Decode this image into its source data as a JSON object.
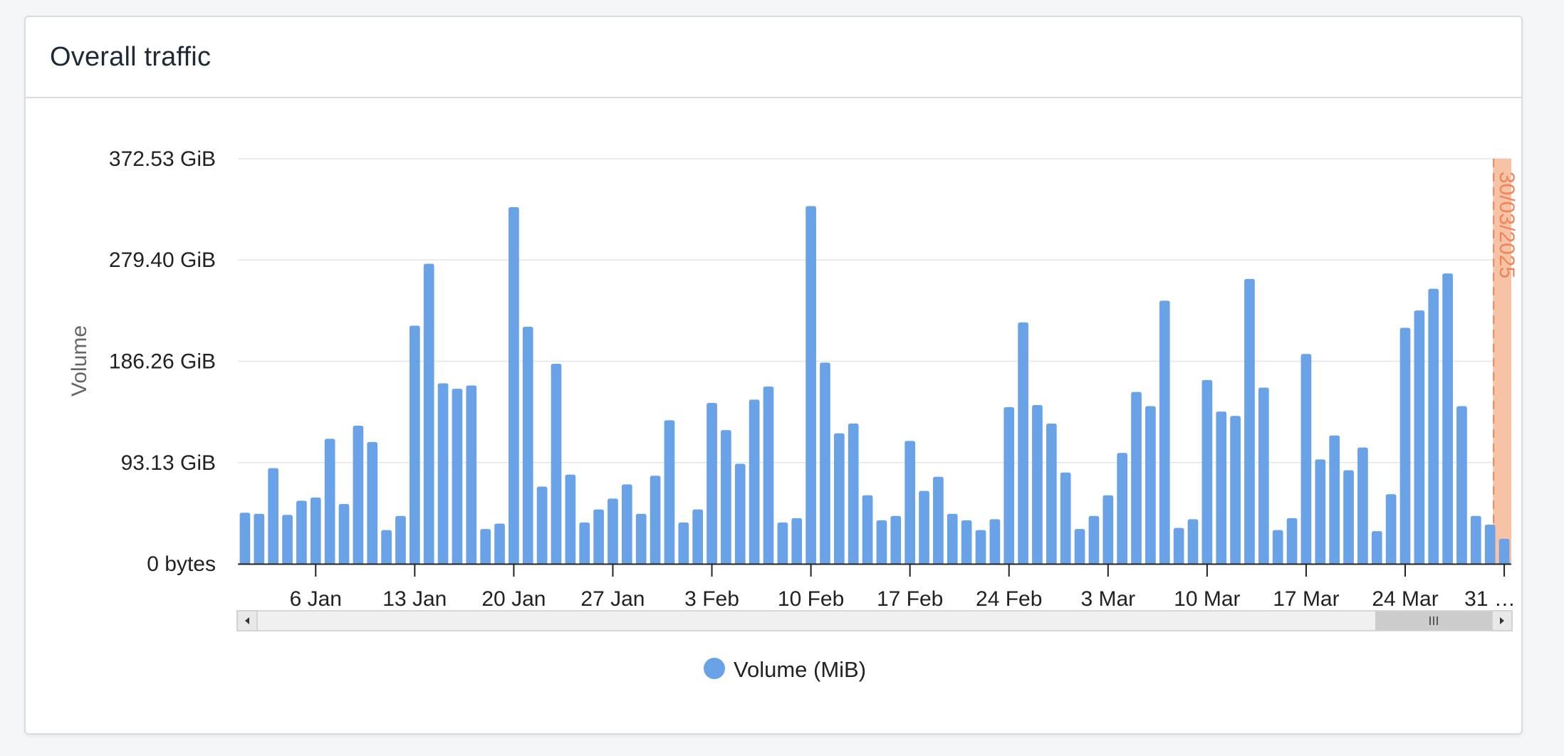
{
  "card": {
    "title": "Overall traffic"
  },
  "colors": {
    "bar": "#6aa2e8",
    "grid": "#e3e6e9",
    "axis": "#222222",
    "plotband": "#f6c3a6",
    "plotline": "#f0855a",
    "scrollbar_track": "#f0f0f0",
    "scrollbar_thumb": "#cccccc",
    "scrollbar_border": "#cccccc"
  },
  "chart_data": {
    "type": "bar",
    "title": "",
    "xlabel": "",
    "ylabel": "Volume",
    "ylim": [
      0,
      372.53
    ],
    "y_unit": "GiB",
    "y_ticks": [
      {
        "value": 0,
        "label": "0 bytes"
      },
      {
        "value": 93.13,
        "label": "93.13 GiB"
      },
      {
        "value": 186.26,
        "label": "186.26 GiB"
      },
      {
        "value": 279.4,
        "label": "279.40 GiB"
      },
      {
        "value": 372.53,
        "label": "372.53 GiB"
      }
    ],
    "x_start": "2025-01-01",
    "x_ticks": [
      {
        "date": "2025-01-06",
        "label": "6 Jan"
      },
      {
        "date": "2025-01-13",
        "label": "13 Jan"
      },
      {
        "date": "2025-01-20",
        "label": "20 Jan"
      },
      {
        "date": "2025-01-27",
        "label": "27 Jan"
      },
      {
        "date": "2025-02-03",
        "label": "3 Feb"
      },
      {
        "date": "2025-02-10",
        "label": "10 Feb"
      },
      {
        "date": "2025-02-17",
        "label": "17 Feb"
      },
      {
        "date": "2025-02-24",
        "label": "24 Feb"
      },
      {
        "date": "2025-03-03",
        "label": "3 Mar"
      },
      {
        "date": "2025-03-10",
        "label": "10 Mar"
      },
      {
        "date": "2025-03-17",
        "label": "17 Mar"
      },
      {
        "date": "2025-03-24",
        "label": "24 Mar"
      },
      {
        "date": "2025-03-31",
        "label": "31 …"
      }
    ],
    "grid": true,
    "legend": {
      "position": "bottom-center"
    },
    "series": [
      {
        "name": "Volume (MiB)",
        "values": [
          47,
          46,
          88,
          45,
          58,
          61,
          115,
          55,
          127,
          112,
          31,
          44,
          219,
          276,
          166,
          161,
          164,
          32,
          37,
          328,
          218,
          71,
          184,
          82,
          38,
          50,
          60,
          73,
          46,
          81,
          132,
          38,
          50,
          148,
          123,
          92,
          151,
          163,
          38,
          42,
          329,
          185,
          120,
          129,
          63,
          40,
          44,
          113,
          67,
          80,
          46,
          40,
          31,
          41,
          144,
          222,
          146,
          129,
          84,
          32,
          44,
          63,
          102,
          158,
          145,
          242,
          33,
          41,
          169,
          140,
          136,
          262,
          162,
          31,
          42,
          193,
          96,
          118,
          86,
          107,
          30,
          64,
          217,
          233,
          253,
          267,
          145,
          44,
          36,
          23
        ]
      }
    ],
    "plot_band": {
      "label": "30/03/2025",
      "date": "2025-03-30"
    },
    "navigator_scrollbar": true
  }
}
